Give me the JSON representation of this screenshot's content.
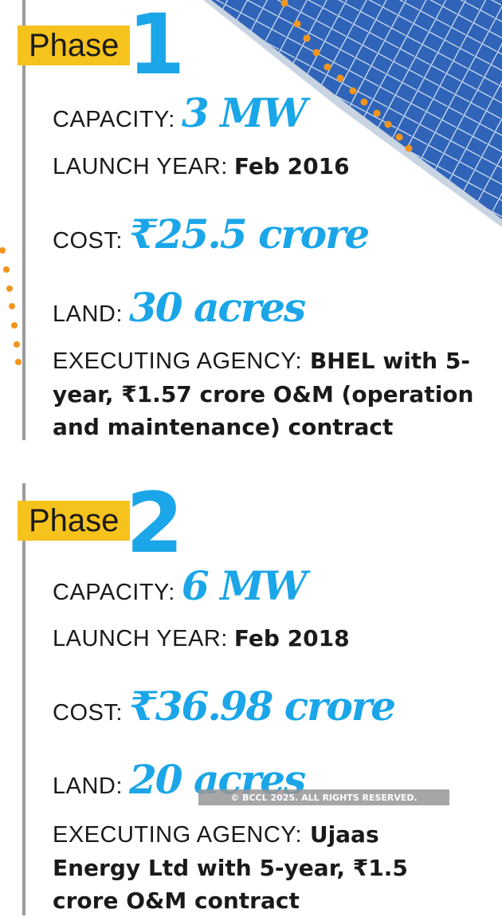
{
  "phases": [
    {
      "tag": "Phase",
      "number": "1",
      "capacity_label": "CAPACITY:",
      "capacity_value": "3 MW",
      "launch_label": "LAUNCH YEAR:",
      "launch_value": "Feb 2016",
      "cost_label": "COST:",
      "cost_value": "₹25.5 crore",
      "land_label": "LAND:",
      "land_value": "30 acres",
      "agency_label": "EXECUTING AGENCY:",
      "agency_value": "BHEL with 5-year, ₹1.57 crore O&M (operation and maintenance) contract"
    },
    {
      "tag": "Phase",
      "number": "2",
      "capacity_label": "CAPACITY:",
      "capacity_value": "6 MW",
      "launch_label": "LAUNCH YEAR:",
      "launch_value": "Feb 2018",
      "cost_label": "COST:",
      "cost_value": "₹36.98 crore",
      "land_label": "LAND:",
      "land_value": "20 acres",
      "agency_label": "EXECUTING AGENCY:",
      "agency_value": "Ujaas Energy Ltd with 5-year, ₹1.5 crore O&M contract"
    }
  ],
  "copyright": "© BCCL 2025. ALL RIGHTS RESERVED.",
  "colors": {
    "accent_blue": "#1aa6e8",
    "tag_yellow": "#f6c21c",
    "dot_orange": "#f2951c",
    "panel_blue": "#2f64b8"
  },
  "icons": {
    "solar": "solar-panel-icon"
  }
}
